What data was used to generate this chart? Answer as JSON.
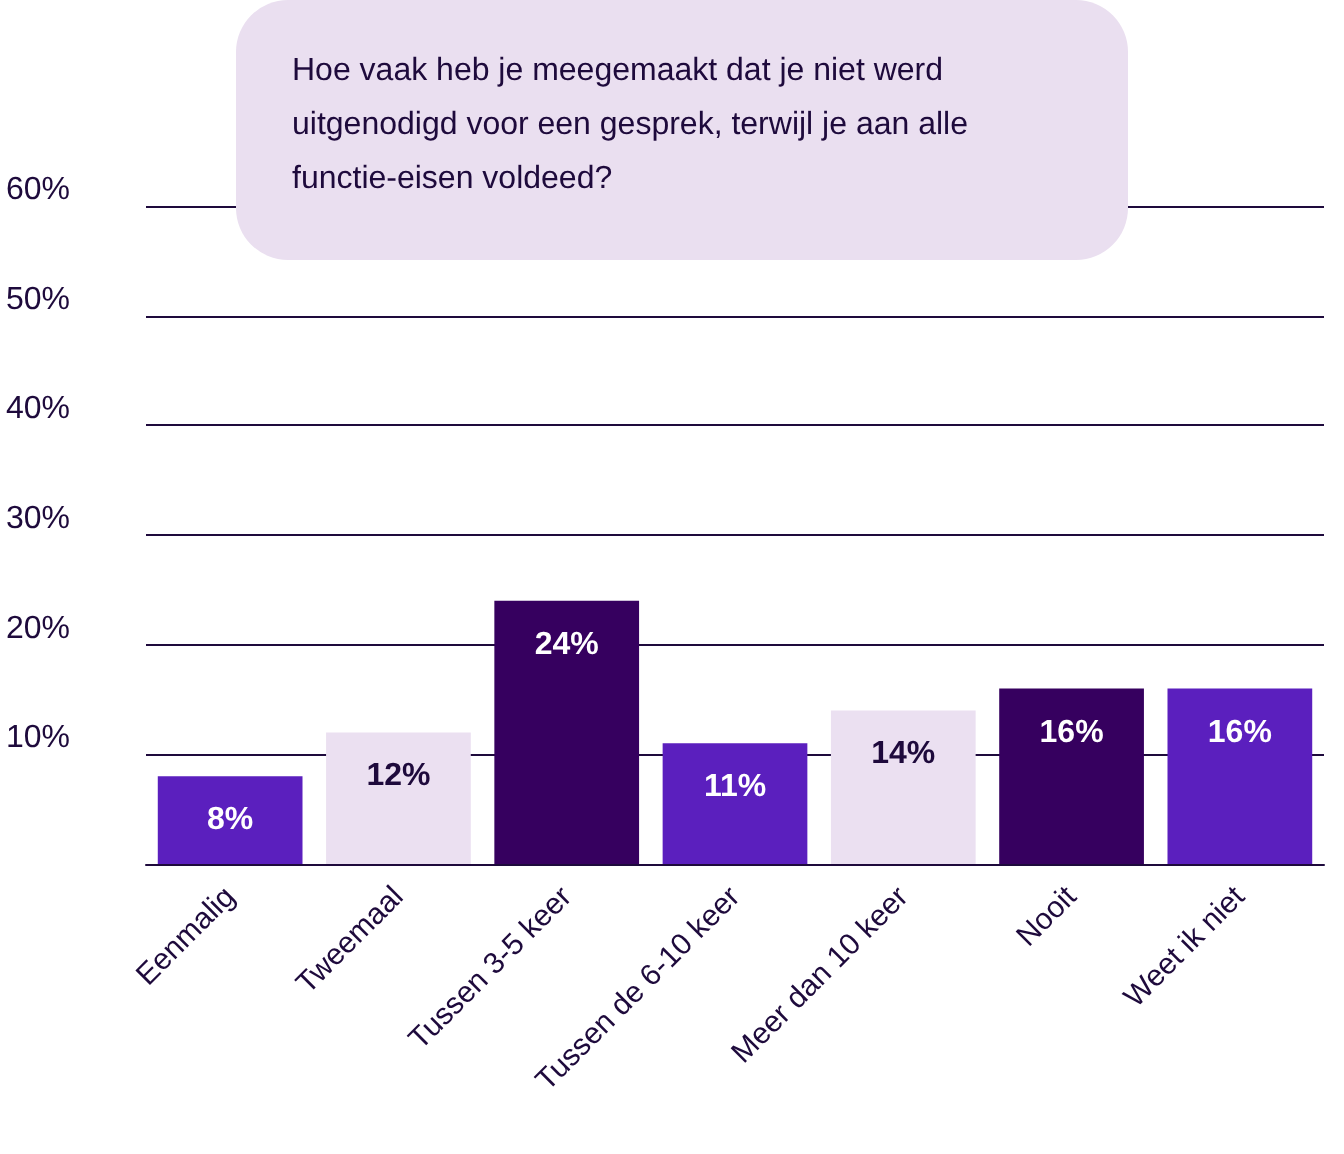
{
  "chart_data": {
    "type": "bar",
    "title": "Hoe vaak heb je meegemaakt dat je niet werd uitgenodigd voor een gesprek, terwijl je aan alle functie-eisen voldeed?",
    "categories": [
      "Eenmalig",
      "Tweemaal",
      "Tussen 3-5 keer",
      "Tussen de 6-10 keer",
      "Meer dan 10 keer",
      "Nooit",
      "Weet ik niet"
    ],
    "values": [
      8,
      12,
      24,
      11,
      14,
      16,
      16
    ],
    "colors": [
      "#5b1fbe",
      "#ebe0f1",
      "#36005f",
      "#5b1fbe",
      "#ebe0f1",
      "#36005f",
      "#5b1fbe"
    ],
    "value_labels": [
      "8%",
      "12%",
      "24%",
      "11%",
      "14%",
      "16%",
      "16%"
    ],
    "ylim": [
      0,
      60
    ],
    "yticks": [
      {
        "value": 0,
        "label": null
      },
      {
        "value": 10,
        "label": "10%"
      },
      {
        "value": 20,
        "label": "20%"
      },
      {
        "value": 30,
        "label": "30%"
      },
      {
        "value": 40,
        "label": "40%"
      },
      {
        "value": 50,
        "label": "50%"
      },
      {
        "value": 60,
        "label": "60%"
      }
    ],
    "grid": "y"
  }
}
